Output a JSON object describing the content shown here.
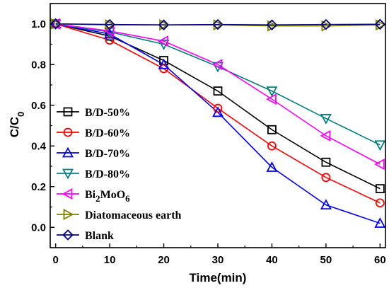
{
  "chart_data": {
    "type": "line",
    "xlabel": "Time(min)",
    "ylabel": "C/C",
    "ylabel_subscript": "0",
    "x": [
      0,
      10,
      20,
      30,
      40,
      50,
      60
    ],
    "xlim": [
      -1,
      61
    ],
    "ylim": [
      -0.1,
      1.1
    ],
    "x_ticks": [
      "0",
      "10",
      "20",
      "30",
      "40",
      "50",
      "60"
    ],
    "y_ticks": [
      "0.0",
      "0.2",
      "0.4",
      "0.6",
      "0.8",
      "1.0"
    ],
    "grid": false,
    "legend_position": "left",
    "series": [
      {
        "name": "B/D-50%",
        "marker": "square",
        "color": "#000000",
        "values": [
          1.0,
          0.94,
          0.82,
          0.67,
          0.48,
          0.32,
          0.19
        ]
      },
      {
        "name": "B/D-60%",
        "marker": "circle",
        "color": "#ff0000",
        "values": [
          1.0,
          0.92,
          0.78,
          0.585,
          0.4,
          0.245,
          0.12
        ]
      },
      {
        "name": "B/D-70%",
        "marker": "triangle-up",
        "color": "#0000ff",
        "values": [
          1.0,
          0.95,
          0.8,
          0.565,
          0.295,
          0.11,
          0.02
        ]
      },
      {
        "name": "B/D-80%",
        "marker": "triangle-down",
        "color": "#008080",
        "values": [
          1.0,
          0.96,
          0.9,
          0.79,
          0.67,
          0.535,
          0.405
        ]
      },
      {
        "name": "Bi",
        "name_sub1": "2",
        "name_mid": "MoO",
        "name_sub2": "6",
        "marker": "triangle-left",
        "color": "#ff00ff",
        "values": [
          1.0,
          0.965,
          0.915,
          0.8,
          0.63,
          0.45,
          0.31
        ]
      },
      {
        "name": "Diatomaceous earth",
        "marker": "triangle-right",
        "color": "#808000",
        "values": [
          1.0,
          0.995,
          0.995,
          0.995,
          0.99,
          0.99,
          0.995
        ]
      },
      {
        "name": "Blank",
        "marker": "diamond",
        "color": "#000080",
        "values": [
          1.0,
          0.997,
          0.995,
          0.997,
          0.995,
          0.997,
          0.998
        ]
      }
    ]
  }
}
